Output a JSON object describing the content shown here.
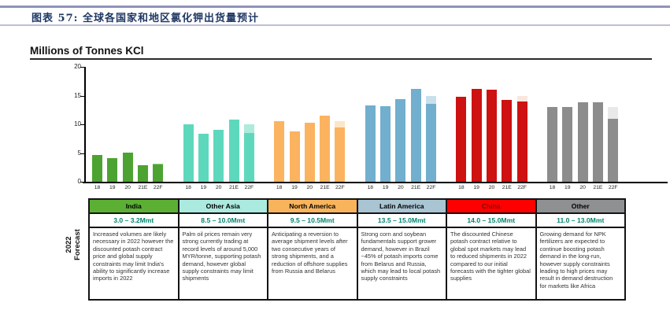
{
  "caption": "图表 57: 全球各国家和地区氯化钾出货量预计",
  "chart_data": {
    "type": "bar",
    "title": "Millions of Tonnes KCl",
    "ylabel": "Millions of Tonnes KCl",
    "ylim": [
      0,
      20
    ],
    "yticks": [
      0,
      5,
      10,
      15,
      20
    ],
    "categories": [
      "18",
      "19",
      "20",
      "21E",
      "22F"
    ],
    "note": "22F bar is a forecast range: solid segment = low end, pale segment = high end",
    "series": [
      {
        "name": "India",
        "color": "#4da331",
        "light_color": "#9cd489",
        "values": [
          4.7,
          4.1,
          5.1,
          2.9
        ],
        "forecast_range_22F": [
          3.0,
          3.2
        ]
      },
      {
        "name": "Other Asia",
        "color": "#5ed8bd",
        "light_color": "#adebdd",
        "values": [
          10.0,
          8.3,
          9.0,
          10.8
        ],
        "forecast_range_22F": [
          8.5,
          10.0
        ]
      },
      {
        "name": "North America",
        "color": "#fbb360",
        "light_color": "#fde6c6",
        "values": [
          10.5,
          8.8,
          10.3,
          11.5
        ],
        "forecast_range_22F": [
          9.5,
          10.5
        ]
      },
      {
        "name": "Latin America",
        "color": "#72aecd",
        "light_color": "#c8e0ed",
        "values": [
          13.3,
          13.1,
          14.4,
          16.2
        ],
        "forecast_range_22F": [
          13.5,
          15.0
        ]
      },
      {
        "name": "China",
        "color": "#ce1111",
        "light_color": "#f9e6de",
        "values": [
          14.8,
          16.2,
          16.0,
          14.2
        ],
        "forecast_range_22F": [
          14.0,
          15.0
        ]
      },
      {
        "name": "Other",
        "color": "#8c8c8c",
        "light_color": "#e9e9e9",
        "values": [
          13.0,
          13.0,
          13.8,
          13.9
        ],
        "forecast_range_22F": [
          11.0,
          13.0
        ]
      }
    ]
  },
  "table": {
    "row_label": "2022\nForecast",
    "columns": [
      {
        "name": "India",
        "header_bg": "#5bb033",
        "header_color": "#000000",
        "forecast": "3.0 – 3.2Mmt",
        "description": "Increased volumes are likely necessary in 2022 however the discounted potash contract price and global supply constraints may limit India's ability to significantly increase imports in 2022"
      },
      {
        "name": "Other Asia",
        "header_bg": "#abeade",
        "header_color": "#000000",
        "forecast": "8.5 – 10.0Mmt",
        "description": "Palm oil prices remain very strong currently trading at record levels of around 5,000 MYR/tonne, supporting potash demand, however global supply constraints may limit shipments"
      },
      {
        "name": "North America",
        "header_bg": "#f9b45b",
        "header_color": "#000000",
        "forecast": "9.5 – 10.5Mmt",
        "description": "Anticipating a reversion to average shipment levels after two consecutive years of strong shipments, and a reduction of offshore supplies from Russia and Belarus"
      },
      {
        "name": "Latin America",
        "header_bg": "#a9c4d3",
        "header_color": "#000000",
        "forecast": "13.5 – 15.0Mmt",
        "description": "Strong corn and soybean fundamentals support grower demand, however in Brazil ~45% of potash imports come from Belarus and Russia, which may lead to local potash supply constraints"
      },
      {
        "name": "China",
        "header_bg": "#fe0000",
        "header_color": "#7a0c0c",
        "forecast": "14.0 – 15.0Mmt",
        "description": "The discounted Chinese potash contract relative to global spot markets may lead to reduced shipments in 2022 compared to our initial forecasts with the tighter global supplies"
      },
      {
        "name": "Other",
        "header_bg": "#8f9092",
        "header_color": "#000000",
        "forecast": "11.0 – 13.0Mmt",
        "description": "Growing demand for NPK fertilizers are expected to continue boosting potash demand in the long-run, however supply constraints leading to high prices may result in demand destruction for markets like Africa"
      }
    ]
  }
}
